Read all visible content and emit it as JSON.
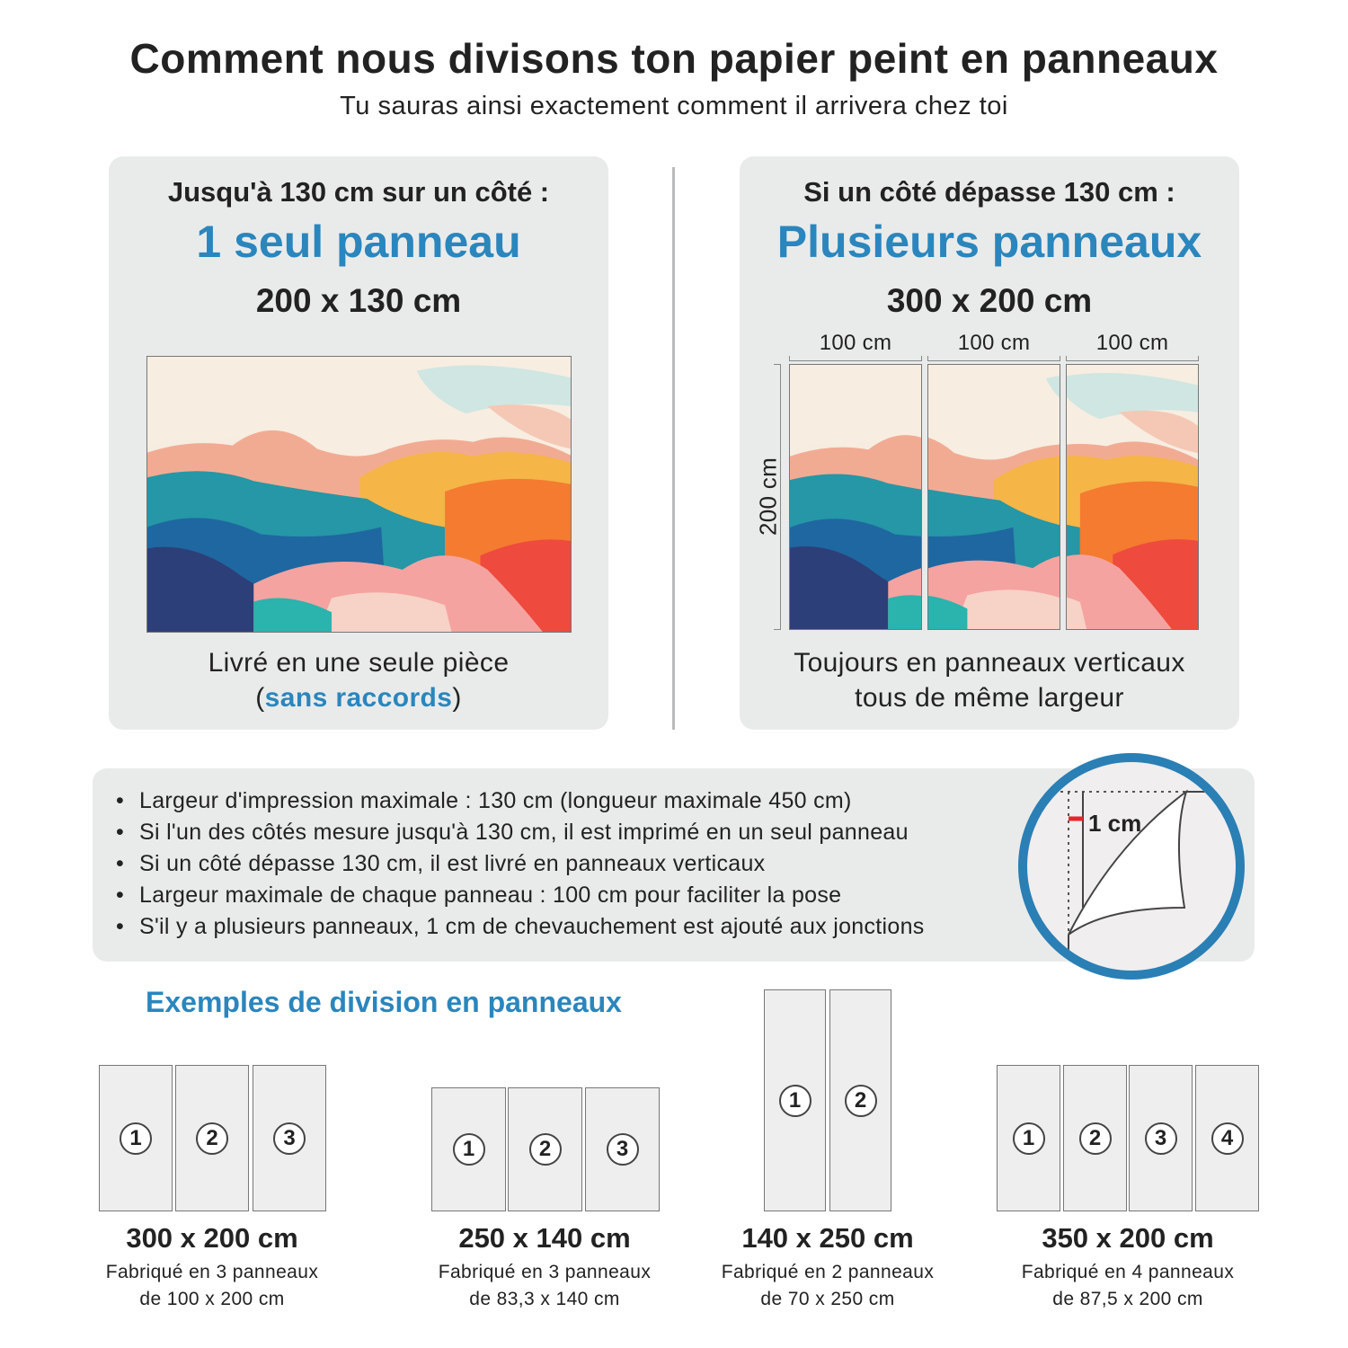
{
  "header": {
    "title": "Comment nous divisons ton papier peint en panneaux",
    "subtitle": "Tu sauras ainsi exactement comment il arrivera chez toi"
  },
  "single": {
    "condition": "Jusqu'à 130 cm sur un côté :",
    "headline": "1 seul panneau",
    "dimensions": "200 x 130 cm",
    "caption_line1": "Livré en une seule pièce",
    "caption_paren_open": "(",
    "caption_highlight": "sans raccords",
    "caption_paren_close": ")"
  },
  "multi": {
    "condition": "Si un côté dépasse 130 cm :",
    "headline": "Plusieurs panneaux",
    "dimensions": "300 x 200 cm",
    "panel_widths": [
      "100 cm",
      "100 cm",
      "100 cm"
    ],
    "height_label": "200 cm",
    "caption_line1": "Toujours en panneaux verticaux",
    "caption_line2": "tous de même largeur"
  },
  "info": {
    "bullets": [
      "Largeur d'impression maximale : 130 cm (longueur maximale 450 cm)",
      "Si l'un des côtés mesure jusqu'à 130 cm, il est imprimé en un seul panneau",
      "Si un côté dépasse 130 cm, il est livré en panneaux verticaux",
      "Largeur maximale de chaque panneau : 100 cm pour faciliter la pose",
      "S'il y a plusieurs panneaux, 1 cm de chevauchement est ajouté aux jonctions"
    ],
    "overlap_label": "1 cm"
  },
  "examples": {
    "title": "Exemples de division en panneaux",
    "items": [
      {
        "dimensions": "300 x 200 cm",
        "line1": "Fabriqué en 3 panneaux",
        "line2": "de 100 x 200 cm",
        "panels": [
          "1",
          "2",
          "3"
        ]
      },
      {
        "dimensions": "250 x 140 cm",
        "line1": "Fabriqué en 3 panneaux",
        "line2": "de 83,3 x 140 cm",
        "panels": [
          "1",
          "2",
          "3"
        ]
      },
      {
        "dimensions": "140 x 250 cm",
        "line1": "Fabriqué en 2 panneaux",
        "line2": "de 70 x 250 cm",
        "panels": [
          "1",
          "2"
        ]
      },
      {
        "dimensions": "350 x 200 cm",
        "line1": "Fabriqué en 4 panneaux",
        "line2": "de 87,5 x 200 cm",
        "panels": [
          "1",
          "2",
          "3",
          "4"
        ]
      }
    ]
  },
  "colors": {
    "accent": "#2a86bd",
    "card": "#e9ebeb",
    "overlap_marker": "#e8262b"
  }
}
